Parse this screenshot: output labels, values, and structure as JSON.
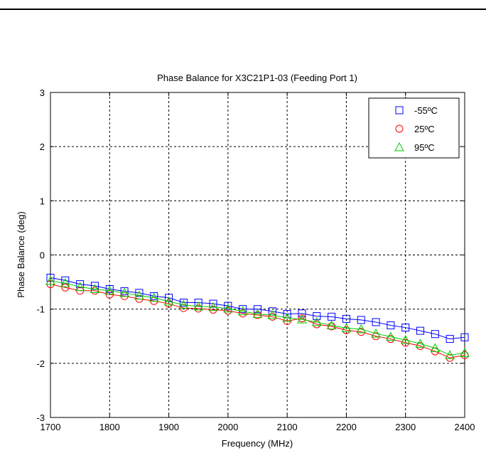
{
  "chart_data": {
    "type": "line",
    "title": "Phase Balance for X3C21P1-03 (Feeding Port 1)",
    "xlabel": "Frequency (MHz)",
    "ylabel": "Phase Balance (deg)",
    "xlim": [
      1700,
      2400
    ],
    "ylim": [
      -3,
      3
    ],
    "xticks": [
      "1700",
      "1800",
      "1900",
      "2000",
      "2100",
      "2200",
      "2300",
      "2400"
    ],
    "yticks": [
      "-3",
      "-2",
      "-1",
      "0",
      "1",
      "2",
      "3"
    ],
    "grid": true,
    "legend_position": "top-right",
    "x": [
      1700,
      1725,
      1750,
      1775,
      1800,
      1825,
      1850,
      1875,
      1900,
      1925,
      1950,
      1975,
      2000,
      2025,
      2050,
      2075,
      2100,
      2125,
      2150,
      2175,
      2200,
      2225,
      2250,
      2275,
      2300,
      2325,
      2350,
      2375,
      2400
    ],
    "series": [
      {
        "name": "-55ºC",
        "color": "#0000ff",
        "marker": "square",
        "values": [
          -0.42,
          -0.47,
          -0.54,
          -0.57,
          -0.63,
          -0.67,
          -0.7,
          -0.76,
          -0.79,
          -0.88,
          -0.88,
          -0.9,
          -0.94,
          -1.0,
          -1.0,
          -1.04,
          -1.09,
          -1.08,
          -1.13,
          -1.14,
          -1.18,
          -1.2,
          -1.24,
          -1.3,
          -1.34,
          -1.4,
          -1.46,
          -1.55,
          -1.52
        ]
      },
      {
        "name": "25ºC",
        "color": "#ff0000",
        "marker": "circle",
        "values": [
          -0.54,
          -0.6,
          -0.66,
          -0.66,
          -0.73,
          -0.76,
          -0.81,
          -0.85,
          -0.9,
          -0.98,
          -0.99,
          -1.01,
          -1.03,
          -1.08,
          -1.11,
          -1.14,
          -1.22,
          -1.17,
          -1.28,
          -1.32,
          -1.39,
          -1.42,
          -1.5,
          -1.55,
          -1.62,
          -1.68,
          -1.78,
          -1.9,
          -1.85
        ]
      },
      {
        "name": "95ºC",
        "color": "#00cc00",
        "marker": "triangle",
        "values": [
          -0.48,
          -0.52,
          -0.59,
          -0.63,
          -0.66,
          -0.7,
          -0.75,
          -0.79,
          -0.86,
          -0.92,
          -0.95,
          -0.96,
          -0.99,
          -1.04,
          -1.09,
          -1.11,
          -1.16,
          -1.19,
          -1.24,
          -1.3,
          -1.35,
          -1.37,
          -1.45,
          -1.51,
          -1.57,
          -1.64,
          -1.72,
          -1.85,
          -1.81
        ]
      }
    ]
  }
}
